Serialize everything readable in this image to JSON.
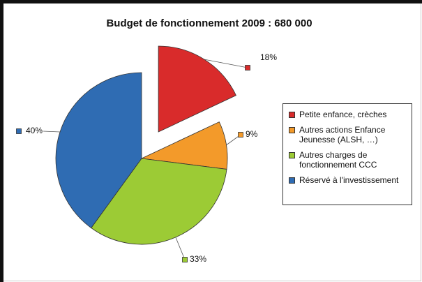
{
  "chart_data": {
    "type": "pie",
    "title": "Budget de fonctionnement 2009 : 680 000",
    "categories": [
      "Petite enfance, crèches",
      "Autres actions Enfance Jeunesse (ALSH, …)",
      "Autres charges de fonctionnement CCC",
      "Réservé à l'investissement"
    ],
    "values": [
      18,
      9,
      33,
      40
    ],
    "value_labels": [
      "18%",
      "9%",
      "33%",
      "40%"
    ],
    "colors": [
      "#d92b2b",
      "#f39a2a",
      "#9ccb35",
      "#2f6cb3"
    ],
    "exploded": [
      true,
      false,
      false,
      false
    ]
  }
}
